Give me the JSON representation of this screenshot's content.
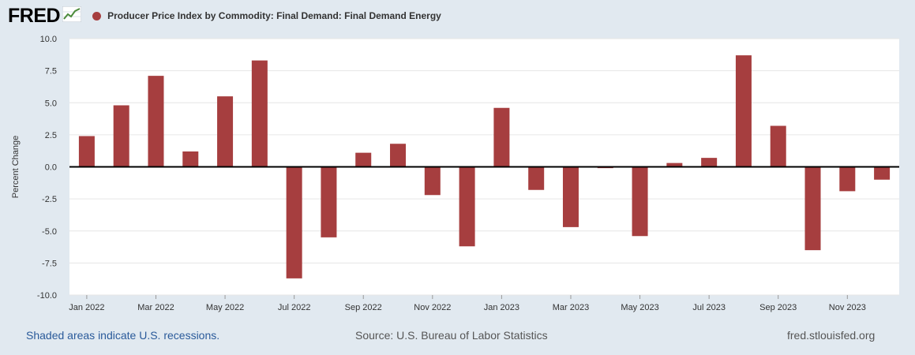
{
  "logo": {
    "text": "FRED",
    "icon": "chart-line-icon"
  },
  "colors": {
    "bar": "#a63e3f",
    "background": "#e1e9f0",
    "plot_bg": "#ffffff",
    "recession_text": "#2a5a9a"
  },
  "chart_data": {
    "type": "bar",
    "title": "Producer Price Index by Commodity: Final Demand: Final Demand Energy",
    "ylabel": "Percent Change",
    "xlabel": "",
    "ylim": [
      -10,
      10
    ],
    "yticks": [
      10,
      7.5,
      5,
      2.5,
      0,
      -2.5,
      -5,
      -7.5,
      -10
    ],
    "ytick_labels": [
      "10.0",
      "7.5",
      "5.0",
      "2.5",
      "0.0",
      "-2.5",
      "-5.0",
      "-7.5",
      "-10.0"
    ],
    "categories": [
      "Jan 2022",
      "Feb 2022",
      "Mar 2022",
      "Apr 2022",
      "May 2022",
      "Jun 2022",
      "Jul 2022",
      "Aug 2022",
      "Sep 2022",
      "Oct 2022",
      "Nov 2022",
      "Dec 2022",
      "Jan 2023",
      "Feb 2023",
      "Mar 2023",
      "Apr 2023",
      "May 2023",
      "Jun 2023",
      "Jul 2023",
      "Aug 2023",
      "Sep 2023",
      "Oct 2023",
      "Nov 2023",
      "Dec 2023"
    ],
    "values": [
      2.4,
      4.8,
      7.1,
      1.2,
      5.5,
      8.3,
      -8.7,
      -5.5,
      1.1,
      1.8,
      -2.2,
      -6.2,
      4.6,
      -1.8,
      -4.7,
      -0.1,
      -5.4,
      0.3,
      0.7,
      8.7,
      3.2,
      -6.5,
      -1.9,
      -1.0
    ],
    "xtick_labels": [
      {
        "index": 0,
        "label": "Jan 2022"
      },
      {
        "index": 2,
        "label": "Mar 2022"
      },
      {
        "index": 4,
        "label": "May 2022"
      },
      {
        "index": 6,
        "label": "Jul 2022"
      },
      {
        "index": 8,
        "label": "Sep 2022"
      },
      {
        "index": 10,
        "label": "Nov 2022"
      },
      {
        "index": 12,
        "label": "Jan 2023"
      },
      {
        "index": 14,
        "label": "Mar 2023"
      },
      {
        "index": 16,
        "label": "May 2023"
      },
      {
        "index": 18,
        "label": "Jul 2023"
      },
      {
        "index": 20,
        "label": "Sep 2023"
      },
      {
        "index": 22,
        "label": "Nov 2023"
      }
    ],
    "legend_position": "top-left",
    "grid": true
  },
  "footer": {
    "recession_note": "Shaded areas indicate U.S. recessions.",
    "source": "Source: U.S. Bureau of Labor Statistics",
    "site": "fred.stlouisfed.org"
  }
}
